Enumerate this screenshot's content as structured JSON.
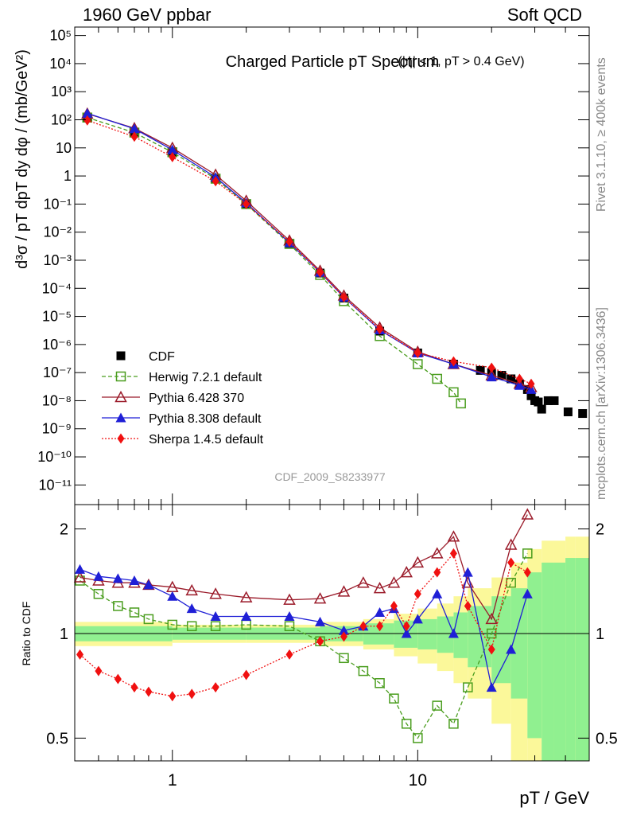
{
  "header": {
    "left": "1960 GeV ppbar",
    "right": "Soft QCD"
  },
  "side_labels": {
    "rivet": "Rivet 3.1.10, ≥ 400k events",
    "mcplots": "mcplots.cern.ch [arXiv:1306.3436]"
  },
  "chart_data": [
    {
      "type": "scatter",
      "panel": "main",
      "title": "Charged Particle pT Spectrum",
      "title_cut": "(|η| < 1, pT > 0.4 GeV)",
      "ylabel": "d³σ / pT dpT dy dφ / (mb/GeV²)",
      "analysis_id": "CDF_2009_S8233977",
      "xscale": "log",
      "yscale": "log",
      "xlim": [
        0.4,
        50
      ],
      "ylim": [
        2e-12,
        200000.0
      ],
      "x_ticks": [
        1,
        10
      ],
      "x_tick_labels": [
        "1",
        "10"
      ],
      "y_ticks": [
        1e-11,
        1e-10,
        1e-09,
        1e-08,
        1e-07,
        1e-06,
        1e-05,
        0.0001,
        0.001,
        0.01,
        0.1,
        1,
        10,
        100,
        1000.0,
        10000.0,
        100000.0
      ],
      "y_tick_labels": [
        "10⁻¹¹",
        "10⁻¹⁰",
        "10⁻⁹",
        "10⁻⁸",
        "10⁻⁷",
        "10⁻⁶",
        "10⁻⁵",
        "10⁻⁴",
        "10⁻³",
        "10⁻²",
        "10⁻¹",
        "1",
        "10",
        "10²",
        "10³",
        "10⁴",
        "10⁵"
      ],
      "legend_position": "bottom-left",
      "series": [
        {
          "name": "CDF",
          "color": "#000000",
          "marker": "square",
          "x": [
            0.45,
            0.7,
            1,
            1.5,
            2,
            3,
            4,
            5,
            7,
            10,
            14,
            18,
            20,
            22,
            24,
            26,
            28,
            29,
            30,
            31,
            32,
            34,
            36,
            41,
            47
          ],
          "y": [
            120,
            35,
            7,
            0.8,
            0.1,
            0.004,
            0.00035,
            4.5e-05,
            3e-06,
            5e-07,
            2e-07,
            1.2e-07,
            1e-07,
            8e-08,
            6e-08,
            4e-08,
            2.5e-08,
            1.5e-08,
            1e-08,
            9e-09,
            5e-09,
            1e-08,
            1e-08,
            4e-09,
            3.5e-09
          ]
        },
        {
          "name": "Herwig 7.2.1 default",
          "color": "#4a9d1e",
          "marker": "open-square",
          "dash": "dashed",
          "x": [
            0.45,
            0.7,
            1,
            1.5,
            2,
            3,
            4,
            5,
            7,
            10,
            12,
            14,
            15
          ],
          "y": [
            120,
            35,
            7,
            0.8,
            0.1,
            0.0038,
            0.0003,
            3.5e-05,
            2e-06,
            2e-07,
            6e-08,
            2e-08,
            8e-09
          ]
        },
        {
          "name": "Pythia 6.428 370",
          "color": "#9b1b2a",
          "marker": "open-triangle",
          "dash": "solid",
          "x": [
            0.45,
            0.7,
            1,
            1.5,
            2,
            3,
            4,
            5,
            7,
            10,
            14,
            20,
            26,
            29
          ],
          "y": [
            165,
            50,
            10,
            1.1,
            0.13,
            0.005,
            0.00042,
            5.5e-05,
            4e-06,
            5.5e-07,
            2e-07,
            8e-08,
            4e-08,
            3e-08
          ]
        },
        {
          "name": "Pythia 8.308 default",
          "color": "#1f1fd6",
          "marker": "triangle",
          "dash": "solid",
          "x": [
            0.45,
            0.7,
            1,
            1.5,
            2,
            3,
            4,
            5,
            7,
            10,
            14,
            20,
            26,
            29
          ],
          "y": [
            170,
            48,
            8.5,
            0.9,
            0.11,
            0.0042,
            0.00037,
            4.8e-05,
            3.3e-06,
            5e-07,
            2e-07,
            7e-08,
            3.5e-08,
            2.5e-08
          ]
        },
        {
          "name": "Sherpa 1.4.5 default",
          "color": "#f01010",
          "marker": "diamond",
          "dash": "dotted",
          "x": [
            0.45,
            0.7,
            1,
            1.5,
            2,
            3,
            4,
            5,
            7,
            10,
            14,
            20,
            26,
            29
          ],
          "y": [
            95,
            25,
            4.7,
            0.65,
            0.1,
            0.0045,
            0.00037,
            4.8e-05,
            3.5e-06,
            5e-07,
            2.5e-07,
            1.5e-07,
            6e-08,
            4e-08
          ]
        }
      ]
    },
    {
      "type": "line",
      "panel": "ratio",
      "ylabel": "Ratio to CDF",
      "xlabel": "pT / GeV",
      "xscale": "log",
      "yscale": "log",
      "xlim": [
        0.4,
        50
      ],
      "ylim": [
        0.43,
        2.35
      ],
      "x_ticks": [
        1,
        10
      ],
      "x_tick_labels": [
        "1",
        "10"
      ],
      "y_ticks": [
        0.5,
        1,
        2
      ],
      "y_tick_labels": [
        "0.5",
        "1",
        "2"
      ],
      "band": {
        "x": [
          0.4,
          1,
          2,
          4,
          6,
          8,
          10,
          12,
          14,
          16,
          20,
          24,
          28,
          32,
          36,
          40,
          44,
          50
        ],
        "inner": [
          0.05,
          0.04,
          0.04,
          0.05,
          0.07,
          0.09,
          0.1,
          0.12,
          0.15,
          0.2,
          0.28,
          0.35,
          0.5,
          0.6,
          0.6,
          0.65,
          0.65,
          0.65
        ],
        "outer": [
          0.08,
          0.06,
          0.06,
          0.08,
          0.1,
          0.14,
          0.18,
          0.22,
          0.28,
          0.35,
          0.45,
          0.6,
          0.75,
          0.85,
          0.85,
          0.9,
          0.9,
          0.9
        ],
        "inner_color": "#90f090",
        "outer_color": "#fbf89a"
      },
      "series": [
        {
          "name": "Herwig 7.2.1 default",
          "color": "#4a9d1e",
          "x": [
            0.42,
            0.5,
            0.6,
            0.7,
            0.8,
            1.0,
            1.2,
            1.5,
            2,
            3,
            4,
            5,
            6,
            7,
            8,
            9,
            10,
            12,
            14,
            16,
            20,
            24,
            28
          ],
          "y": [
            1.42,
            1.3,
            1.2,
            1.15,
            1.1,
            1.06,
            1.05,
            1.05,
            1.06,
            1.05,
            0.95,
            0.85,
            0.78,
            0.72,
            0.65,
            0.55,
            0.5,
            0.62,
            0.55,
            0.7,
            1.0,
            1.4,
            1.7
          ]
        },
        {
          "name": "Pythia 6.428 370",
          "color": "#9b1b2a",
          "x": [
            0.42,
            0.5,
            0.6,
            0.7,
            0.8,
            1.0,
            1.2,
            1.5,
            2,
            3,
            4,
            5,
            6,
            7,
            8,
            9,
            10,
            12,
            14,
            16,
            20,
            24,
            28
          ],
          "y": [
            1.45,
            1.42,
            1.4,
            1.4,
            1.38,
            1.36,
            1.33,
            1.3,
            1.27,
            1.25,
            1.26,
            1.32,
            1.4,
            1.35,
            1.4,
            1.5,
            1.6,
            1.7,
            1.9,
            1.4,
            1.1,
            1.8,
            2.2
          ]
        },
        {
          "name": "Pythia 8.308 default",
          "color": "#1f1fd6",
          "x": [
            0.42,
            0.5,
            0.6,
            0.7,
            0.8,
            1.0,
            1.2,
            1.5,
            2,
            3,
            4,
            5,
            6,
            7,
            8,
            9,
            10,
            12,
            14,
            16,
            20,
            24,
            28
          ],
          "y": [
            1.53,
            1.46,
            1.44,
            1.42,
            1.38,
            1.28,
            1.18,
            1.12,
            1.12,
            1.12,
            1.08,
            1.02,
            1.05,
            1.15,
            1.18,
            1.0,
            1.1,
            1.3,
            1.0,
            1.5,
            0.7,
            0.9,
            1.3
          ]
        },
        {
          "name": "Sherpa 1.4.5 default",
          "color": "#f01010",
          "x": [
            0.42,
            0.5,
            0.6,
            0.7,
            0.8,
            1.0,
            1.2,
            1.5,
            2,
            3,
            4,
            5,
            6,
            7,
            8,
            9,
            10,
            12,
            14,
            16,
            20,
            24,
            28
          ],
          "y": [
            0.87,
            0.78,
            0.74,
            0.7,
            0.68,
            0.66,
            0.67,
            0.7,
            0.76,
            0.87,
            0.95,
            0.98,
            1.05,
            1.05,
            1.2,
            1.05,
            1.3,
            1.5,
            1.7,
            1.2,
            0.9,
            1.6,
            1.5
          ]
        }
      ]
    }
  ]
}
